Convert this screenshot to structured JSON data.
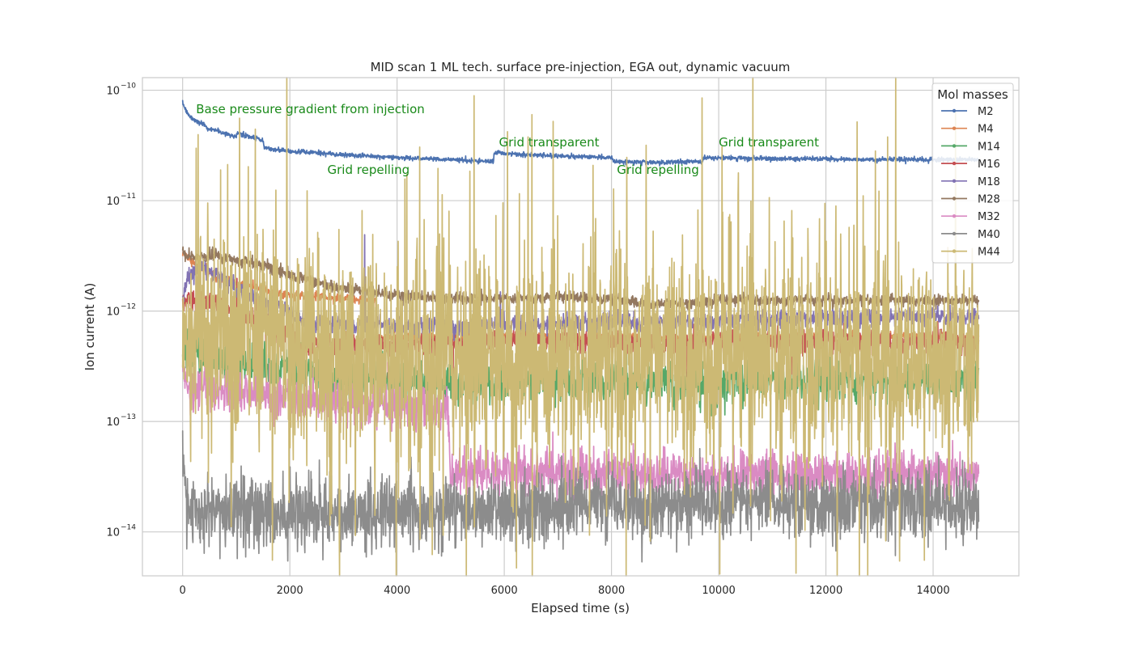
{
  "chart_data": {
    "type": "line",
    "title": "MID scan 1 ML tech. surface pre-injection, EGA out, dynamic vacuum",
    "xlabel": "Elapsed time (s)",
    "ylabel": "Ion current (A)",
    "xlim": [
      -750,
      15600
    ],
    "ylim": [
      4e-15,
      1.3e-10
    ],
    "yscale": "log",
    "grid": true,
    "xticks": [
      0,
      2000,
      4000,
      6000,
      8000,
      10000,
      12000,
      14000
    ],
    "xtick_labels": [
      "0",
      "2000",
      "4000",
      "6000",
      "8000",
      "10000",
      "12000",
      "14000"
    ],
    "yticks": [
      {
        "value": 1e-10,
        "base": "10",
        "exp": "−10"
      },
      {
        "value": 1e-11,
        "base": "10",
        "exp": "−11"
      },
      {
        "value": 1e-12,
        "base": "10",
        "exp": "−12"
      },
      {
        "value": 1e-13,
        "base": "10",
        "exp": "−13"
      },
      {
        "value": 1e-14,
        "base": "10",
        "exp": "−14"
      }
    ],
    "legend": {
      "title": "Mol masses",
      "placement": "upper right"
    },
    "annotations": [
      {
        "text": "Base pressure gradient from injection",
        "x": 250,
        "y": 6.2e-11
      },
      {
        "text": "Grid transparent",
        "x": 5900,
        "y": 3.1e-11
      },
      {
        "text": "Grid repelling",
        "x": 2700,
        "y": 1.75e-11
      },
      {
        "text": "Grid repelling",
        "x": 8100,
        "y": 1.75e-11
      },
      {
        "text": "Grid transparent",
        "x": 10000,
        "y": 3.1e-11
      }
    ],
    "series": [
      {
        "name": "M2",
        "color": "#4c72b0",
        "noise": 0.01,
        "spike_rate": 0,
        "spike_max": 0,
        "x": [
          0,
          30,
          100,
          200,
          400,
          450,
          700,
          1000,
          1020,
          1500,
          1520,
          2000,
          3000,
          4000,
          5000,
          5800,
          5810,
          6500,
          7000,
          8000,
          8050,
          9000,
          9700,
          9720,
          10000,
          11000,
          12000,
          13000,
          14000,
          14850
        ],
        "y": [
          8e-11,
          7e-11,
          6e-11,
          5.4e-11,
          4.9e-11,
          4.5e-11,
          4.2e-11,
          3.8e-11,
          4.1e-11,
          3.5e-11,
          3e-11,
          2.8e-11,
          2.6e-11,
          2.45e-11,
          2.35e-11,
          2.25e-11,
          2.7e-11,
          2.6e-11,
          2.55e-11,
          2.45e-11,
          2.25e-11,
          2.22e-11,
          2.25e-11,
          2.45e-11,
          2.45e-11,
          2.4e-11,
          2.38e-11,
          2.35e-11,
          2.35e-11,
          2.35e-11
        ]
      },
      {
        "name": "M4",
        "color": "#dd8452",
        "noise": 0.02,
        "spike_rate": 0,
        "spike_max": 0,
        "x": [
          0,
          100,
          300,
          600,
          1000,
          1500,
          1520,
          2000,
          3000,
          3600,
          3620,
          5000,
          6000,
          8000,
          9000,
          10000,
          12000,
          14000,
          14850
        ],
        "y": [
          3.5e-12,
          3e-12,
          2.5e-12,
          2.1e-12,
          1.8e-12,
          1.6e-12,
          1.5e-12,
          1.4e-12,
          1.3e-12,
          1.25e-12,
          5.7e-13,
          5.8e-13,
          5.9e-13,
          5.8e-13,
          5.6e-13,
          5.8e-13,
          5.9e-13,
          5.9e-13,
          5.8e-13
        ]
      },
      {
        "name": "M14",
        "color": "#55a868",
        "noise": 0.09,
        "spike_rate": 0.004,
        "spike_max": 0.25,
        "x": [
          0,
          100,
          500,
          1000,
          2000,
          3000,
          4000,
          5000,
          7000,
          8000,
          9000,
          9700,
          10500,
          12000,
          14850
        ],
        "y": [
          5e-13,
          4.4e-13,
          4e-13,
          3.5e-13,
          3e-13,
          2.5e-13,
          2.4e-13,
          2.2e-13,
          2.4e-13,
          2.3e-13,
          2.2e-13,
          2.15e-13,
          2.5e-13,
          2.4e-13,
          2.3e-13
        ]
      },
      {
        "name": "M16",
        "color": "#c44e52",
        "noise": 0.05,
        "spike_rate": 0.005,
        "spike_max": 0.3,
        "x": [
          0,
          500,
          1000,
          1500,
          2000,
          2200,
          3000,
          4000,
          6000,
          8000,
          9000,
          10000,
          12000,
          14850
        ],
        "y": [
          1.3e-12,
          1.2e-12,
          9.5e-13,
          8e-13,
          6.5e-13,
          5e-13,
          5e-13,
          5e-13,
          5.5e-13,
          5.2e-13,
          4.9e-13,
          5.2e-13,
          5.3e-13,
          5.2e-13
        ]
      },
      {
        "name": "M18",
        "color": "#8172b3",
        "noise": 0.04,
        "spike_rate": 0.003,
        "spike_max": 0.6,
        "x": [
          0,
          100,
          300,
          500,
          1000,
          1500,
          2000,
          2200,
          3000,
          4000,
          5000,
          7000,
          8000,
          9000,
          10000,
          12000,
          14850
        ],
        "y": [
          1.2e-12,
          2e-12,
          2.5e-12,
          2.3e-12,
          1.6e-12,
          1.2e-12,
          1e-12,
          8e-13,
          7.5e-13,
          7.3e-13,
          7.2e-13,
          7.8e-13,
          8e-13,
          8e-13,
          8.2e-13,
          8.5e-13,
          9e-13
        ]
      },
      {
        "name": "M28",
        "color": "#937860",
        "noise": 0.025,
        "spike_rate": 0,
        "spike_max": 0,
        "x": [
          0,
          50,
          200,
          600,
          1000,
          1500,
          2000,
          3000,
          4000,
          5000,
          6000,
          7000,
          8000,
          8500,
          9500,
          9700,
          10000,
          12000,
          14850
        ],
        "y": [
          3.8e-12,
          3.2e-12,
          3e-12,
          3.2e-12,
          2.9e-12,
          2.6e-12,
          2.1e-12,
          1.6e-12,
          1.4e-12,
          1.3e-12,
          1.3e-12,
          1.35e-12,
          1.3e-12,
          1.2e-12,
          1.15e-12,
          1.2e-12,
          1.25e-12,
          1.25e-12,
          1.25e-12
        ]
      },
      {
        "name": "M32",
        "color": "#da8bc3",
        "noise": 0.1,
        "spike_rate": 0.003,
        "spike_max": 0.3,
        "x": [
          0,
          100,
          1000,
          2000,
          3000,
          4000,
          4950,
          5000,
          5200,
          6000,
          8000,
          10000,
          12000,
          14850
        ],
        "y": [
          2.8e-13,
          2.1e-13,
          1.9e-13,
          1.65e-13,
          1.5e-13,
          1.4e-13,
          1.3e-13,
          3.2e-14,
          3.4e-14,
          3.6e-14,
          3.4e-14,
          3.3e-14,
          3.4e-14,
          3.3e-14
        ]
      },
      {
        "name": "M40",
        "color": "#8c8c8c",
        "noise": 0.16,
        "spike_rate": 0.004,
        "spike_max": 0.35,
        "x": [
          0,
          20,
          60,
          100,
          1000,
          3000,
          5000,
          8000,
          10000,
          12000,
          14850
        ],
        "y": [
          1e-13,
          4e-14,
          2e-14,
          1.5e-14,
          1.5e-14,
          1.5e-14,
          1.6e-14,
          1.7e-14,
          1.8e-14,
          1.8e-14,
          1.8e-14
        ]
      },
      {
        "name": "M44",
        "color": "#ccb974",
        "noise": 0.45,
        "spike_rate": 0.05,
        "spike_max": 1.6,
        "x": [
          0,
          200,
          1000,
          2000,
          3000,
          5000,
          8000,
          10000,
          12000,
          14850
        ],
        "y": [
          5.5e-13,
          6.5e-13,
          6e-13,
          5e-13,
          4.5e-13,
          3.8e-13,
          4e-13,
          3.8e-13,
          3.8e-13,
          3.6e-13
        ]
      }
    ]
  }
}
